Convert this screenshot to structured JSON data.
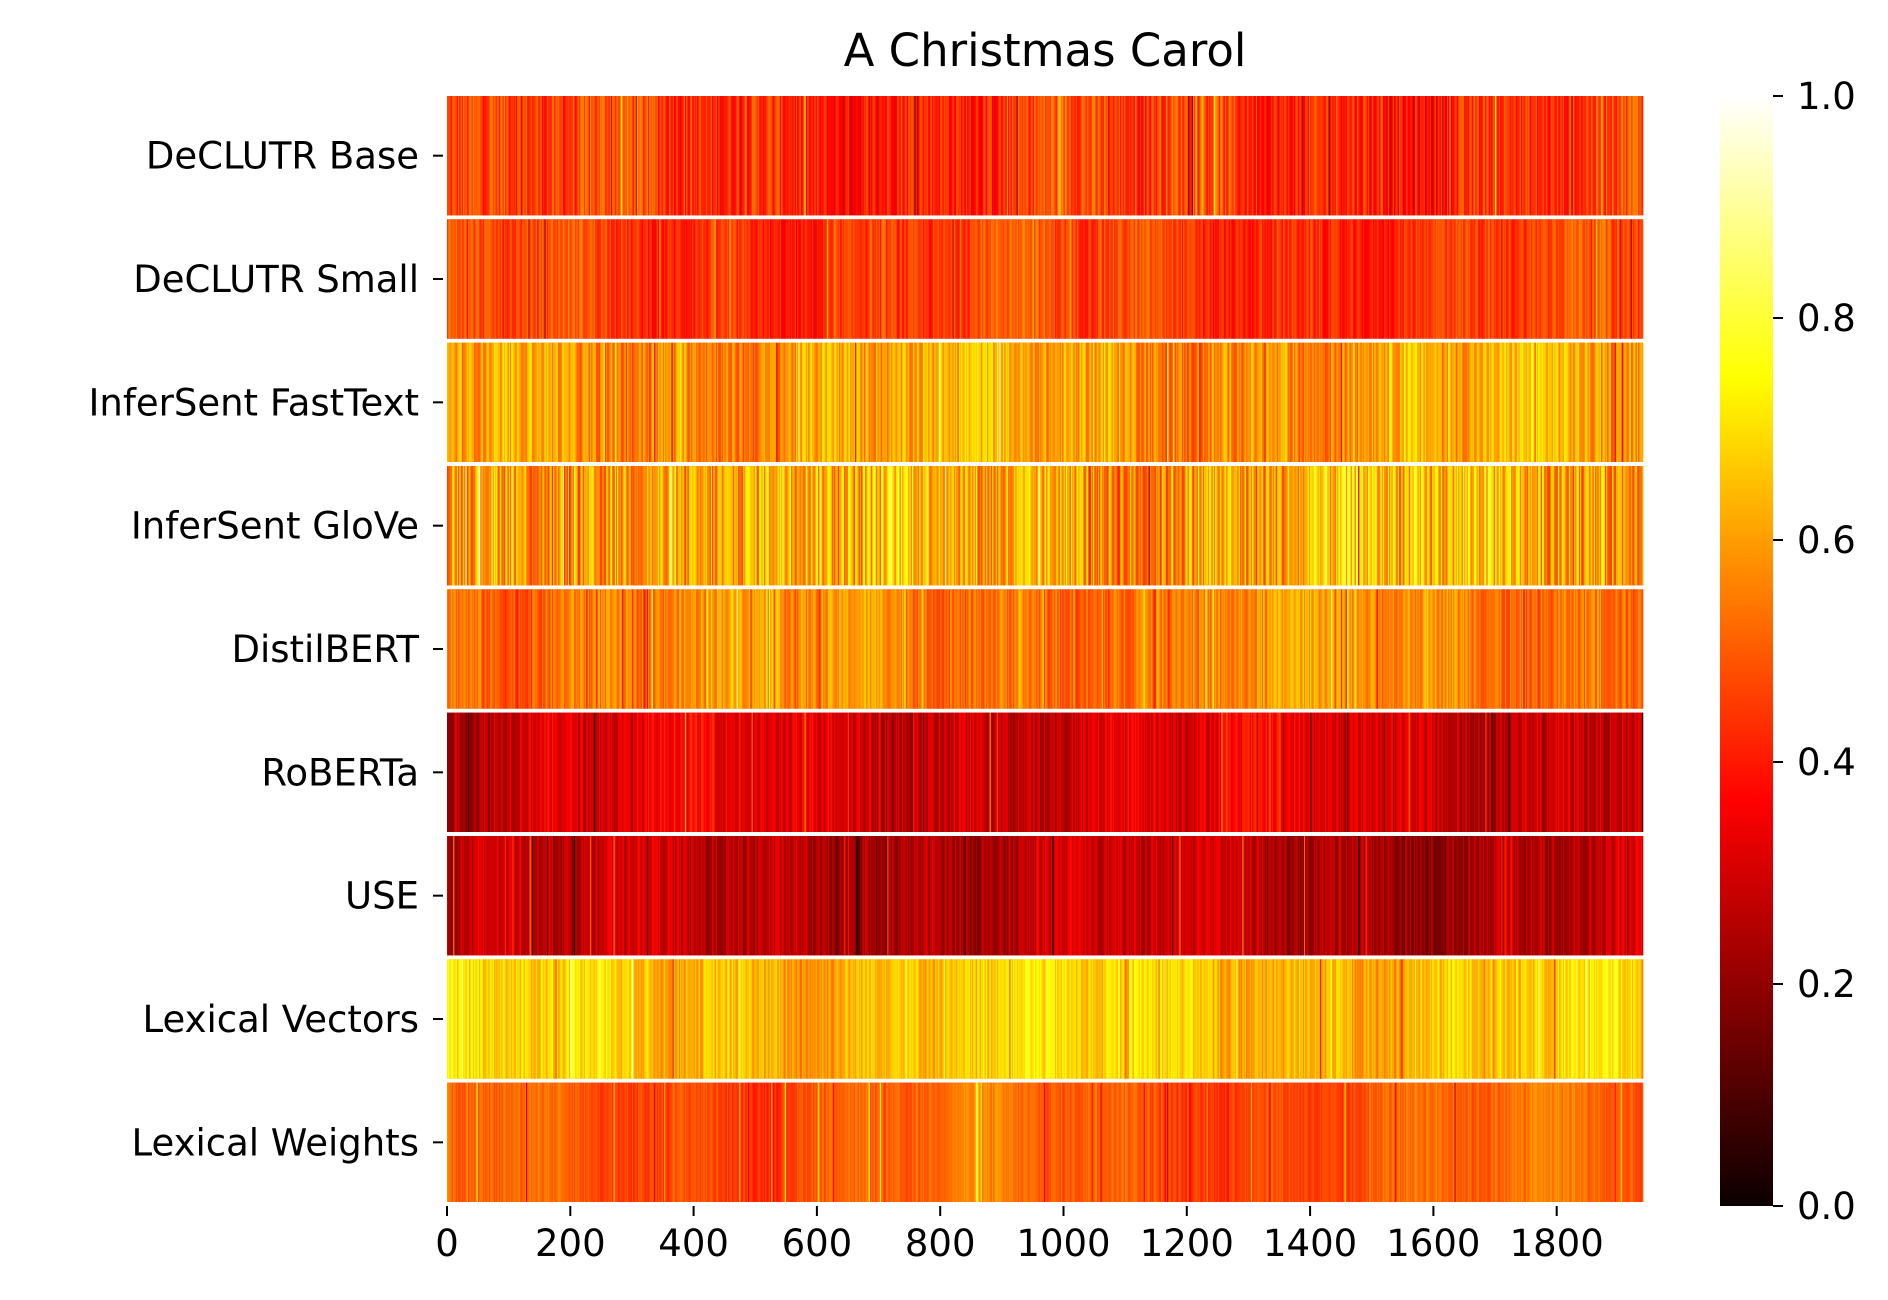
{
  "chart_data": {
    "type": "heatmap",
    "title": "A Christmas Carol",
    "xlabel": "",
    "ylabel": "",
    "colormap": "hot",
    "color_stops": [
      "#0b0000",
      "#ff0000",
      "#ffff00",
      "#ffffff"
    ],
    "rows": [
      {
        "label": "DeCLUTR Base",
        "mean": 0.44,
        "spread": 0.1
      },
      {
        "label": "DeCLUTR Small",
        "mean": 0.45,
        "spread": 0.07
      },
      {
        "label": "InferSent FastText",
        "mean": 0.6,
        "spread": 0.1
      },
      {
        "label": "InferSent GloVe",
        "mean": 0.62,
        "spread": 0.16
      },
      {
        "label": "DistilBERT",
        "mean": 0.56,
        "spread": 0.08
      },
      {
        "label": "RoBERTa",
        "mean": 0.3,
        "spread": 0.08
      },
      {
        "label": "USE",
        "mean": 0.25,
        "spread": 0.07
      },
      {
        "label": "Lexical Vectors",
        "mean": 0.66,
        "spread": 0.08
      },
      {
        "label": "Lexical Weights",
        "mean": 0.5,
        "spread": 0.05
      }
    ],
    "n_columns": 1940,
    "xlim": [
      0,
      1940
    ],
    "x_ticks": [
      0,
      200,
      400,
      600,
      800,
      1000,
      1200,
      1400,
      1600,
      1800
    ],
    "x_tick_labels": [
      "0",
      "200",
      "400",
      "600",
      "800",
      "1000",
      "1200",
      "1400",
      "1600",
      "1800"
    ],
    "colorbar": {
      "vmin": 0.0,
      "vmax": 1.0,
      "ticks": [
        0.0,
        0.2,
        0.4,
        0.6,
        0.8,
        1.0
      ],
      "tick_labels": [
        "0.0",
        "0.2",
        "0.4",
        "0.6",
        "0.8",
        "1.0"
      ]
    }
  }
}
